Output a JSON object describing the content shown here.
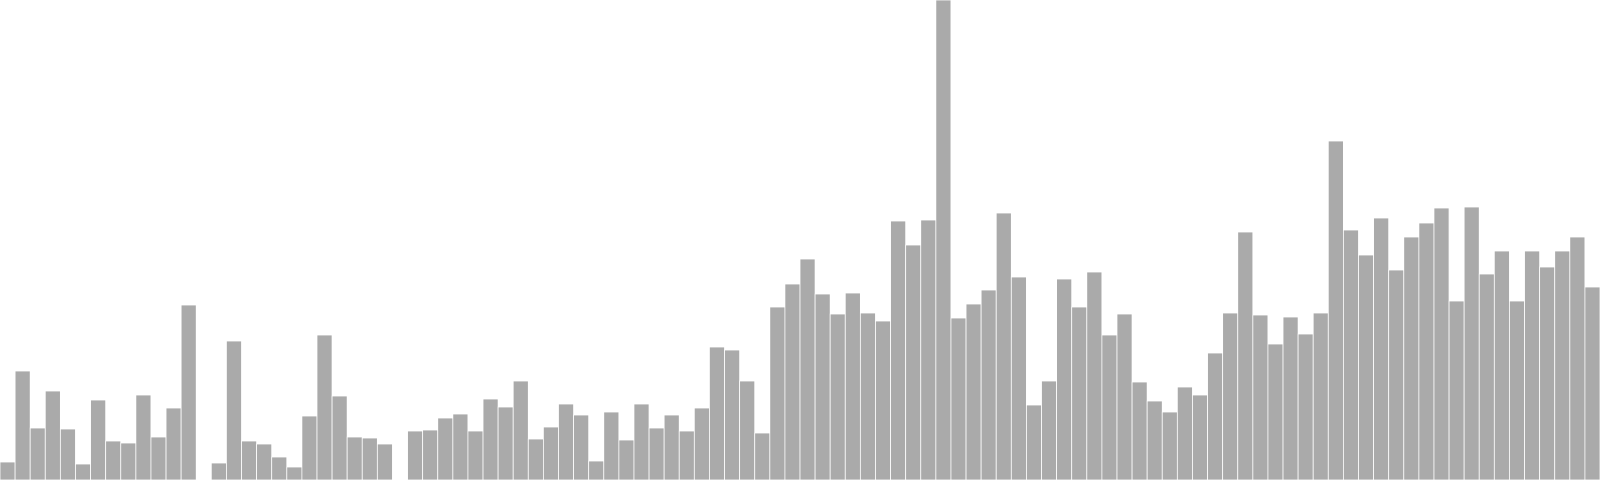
{
  "chart_data": {
    "type": "bar",
    "title": "",
    "xlabel": "",
    "ylabel": "",
    "ylim": [
      0,
      480
    ],
    "grid": false,
    "legend": "none",
    "bar_color": "#aaaaaa",
    "bar_edge_color": "#ffffff",
    "background": "#ffffff",
    "values": [
      18,
      109,
      52,
      89,
      51,
      16,
      80,
      39,
      37,
      85,
      43,
      72,
      175,
      0,
      17,
      139,
      39,
      36,
      23,
      13,
      64,
      145,
      84,
      43,
      42,
      36,
      0,
      49,
      50,
      62,
      66,
      49,
      81,
      73,
      99,
      41,
      53,
      76,
      65,
      19,
      68,
      40,
      76,
      52,
      65,
      49,
      72,
      133,
      130,
      99,
      47,
      173,
      196,
      221,
      186,
      166,
      187,
      167,
      159,
      259,
      235,
      260,
      480,
      162,
      176,
      190,
      267,
      203,
      75,
      99,
      201,
      173,
      208,
      145,
      166,
      98,
      79,
      68,
      93,
      85,
      127,
      167,
      248,
      165,
      136,
      163,
      146,
      167,
      339,
      250,
      225,
      262,
      210,
      243,
      257,
      272,
      179,
      273,
      206,
      229,
      179,
      229,
      213,
      229,
      243,
      193
    ]
  }
}
